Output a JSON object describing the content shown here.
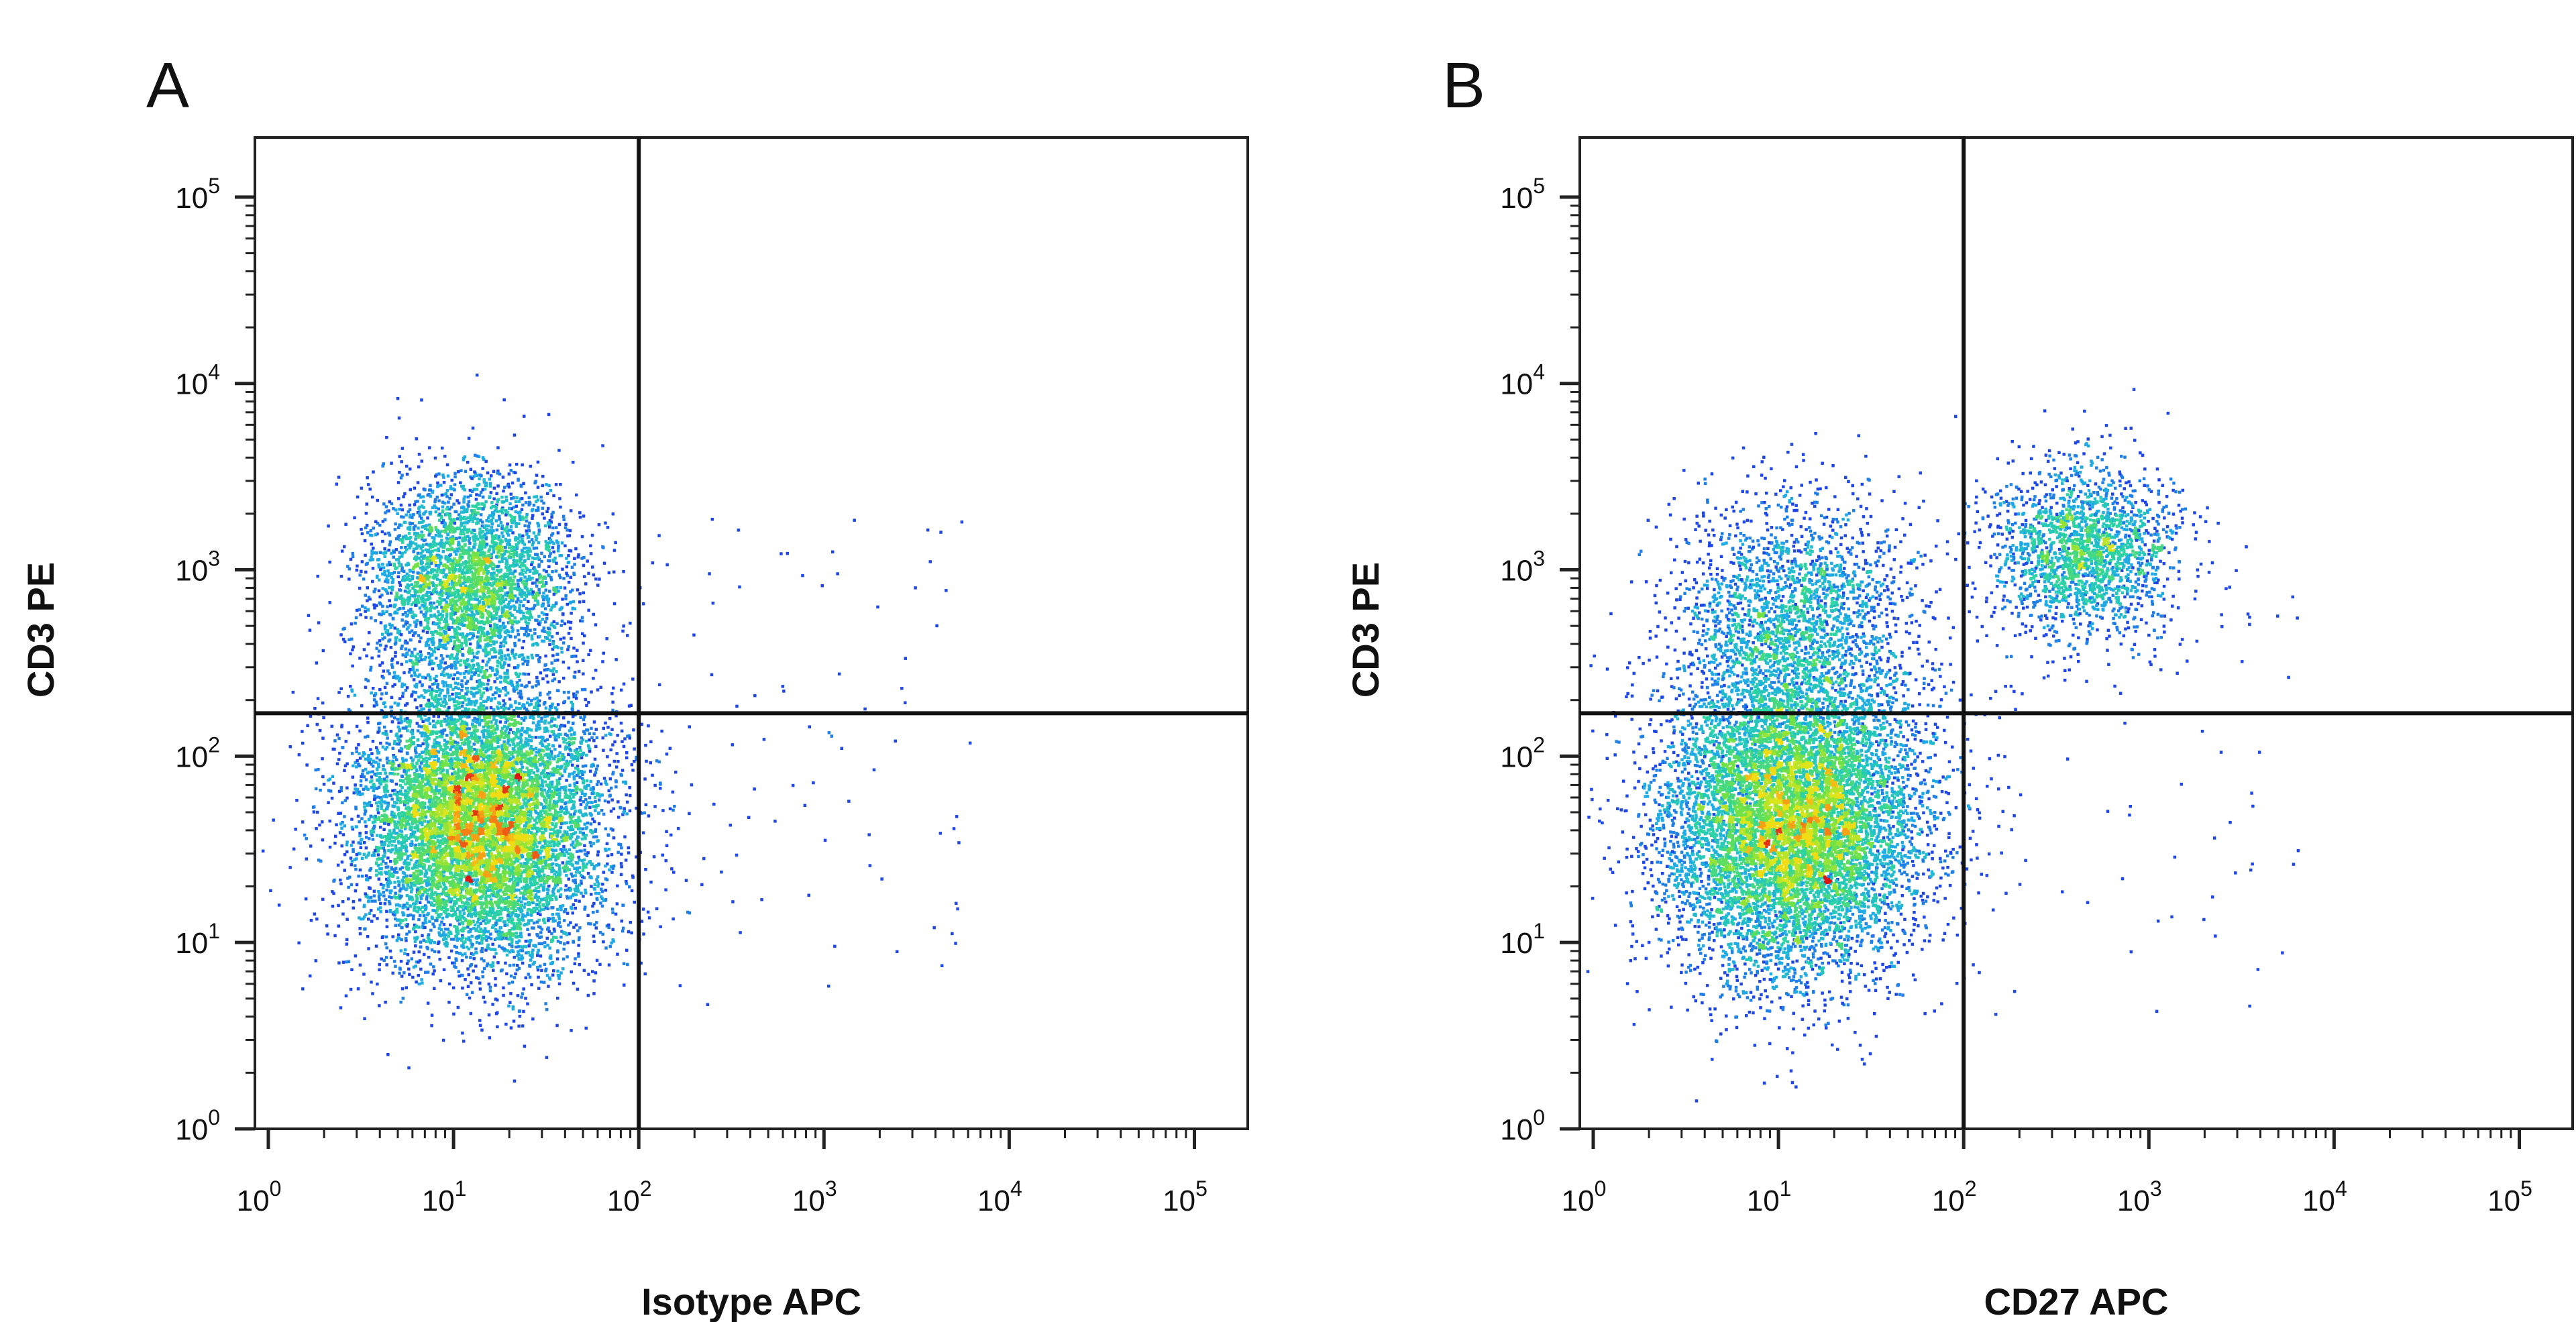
{
  "chart_data": [
    {
      "type": "scatter",
      "panel_label": "A",
      "xlabel": "Isotype APC",
      "ylabel": "CD3 PE",
      "x_scale": "log",
      "y_scale": "log",
      "xlim": [
        1,
        100000
      ],
      "ylim": [
        1,
        100000
      ],
      "x_ticks": [
        1,
        10,
        100,
        1000,
        10000,
        100000
      ],
      "y_ticks": [
        1,
        10,
        100,
        1000,
        10000,
        100000
      ],
      "x_tick_labels": [
        {
          "base": "10",
          "exp": "0"
        },
        {
          "base": "10",
          "exp": "1"
        },
        {
          "base": "10",
          "exp": "2"
        },
        {
          "base": "10",
          "exp": "3"
        },
        {
          "base": "10",
          "exp": "4"
        },
        {
          "base": "10",
          "exp": "5"
        }
      ],
      "y_tick_labels": [
        {
          "base": "10",
          "exp": "0"
        },
        {
          "base": "10",
          "exp": "1"
        },
        {
          "base": "10",
          "exp": "2"
        },
        {
          "base": "10",
          "exp": "3"
        },
        {
          "base": "10",
          "exp": "4"
        },
        {
          "base": "10",
          "exp": "5"
        }
      ],
      "quadrant_gate": {
        "x": 100,
        "y": 170
      },
      "grid": false,
      "colormap": "density (blue to green to yellow to red)",
      "populations": [
        {
          "center": [
            14,
            45
          ],
          "spread_decades": [
            0.33,
            0.38
          ],
          "relative_count": 1.0
        },
        {
          "center": [
            12,
            900
          ],
          "spread_decades": [
            0.27,
            0.28
          ],
          "relative_count": 0.38
        }
      ]
    },
    {
      "type": "scatter",
      "panel_label": "B",
      "xlabel": "CD27 APC",
      "ylabel": "CD3 PE",
      "x_scale": "log",
      "y_scale": "log",
      "xlim": [
        1,
        100000
      ],
      "ylim": [
        1,
        100000
      ],
      "x_ticks": [
        1,
        10,
        100,
        1000,
        10000,
        100000
      ],
      "y_ticks": [
        1,
        10,
        100,
        1000,
        10000,
        100000
      ],
      "x_tick_labels": [
        {
          "base": "10",
          "exp": "0"
        },
        {
          "base": "10",
          "exp": "1"
        },
        {
          "base": "10",
          "exp": "2"
        },
        {
          "base": "10",
          "exp": "3"
        },
        {
          "base": "10",
          "exp": "4"
        },
        {
          "base": "10",
          "exp": "5"
        }
      ],
      "y_tick_labels": [
        {
          "base": "10",
          "exp": "0"
        },
        {
          "base": "10",
          "exp": "1"
        },
        {
          "base": "10",
          "exp": "2"
        },
        {
          "base": "10",
          "exp": "3"
        },
        {
          "base": "10",
          "exp": "4"
        },
        {
          "base": "10",
          "exp": "5"
        }
      ],
      "quadrant_gate": {
        "x": 100,
        "y": 170
      },
      "grid": false,
      "colormap": "density (blue to green to yellow to red)",
      "populations": [
        {
          "center": [
            12,
            45
          ],
          "spread_decades": [
            0.35,
            0.4
          ],
          "relative_count": 1.0
        },
        {
          "center": [
            12,
            500
          ],
          "spread_decades": [
            0.32,
            0.35
          ],
          "relative_count": 0.25
        },
        {
          "center": [
            450,
            1300
          ],
          "spread_decades": [
            0.24,
            0.22
          ],
          "relative_count": 0.22
        }
      ]
    }
  ]
}
